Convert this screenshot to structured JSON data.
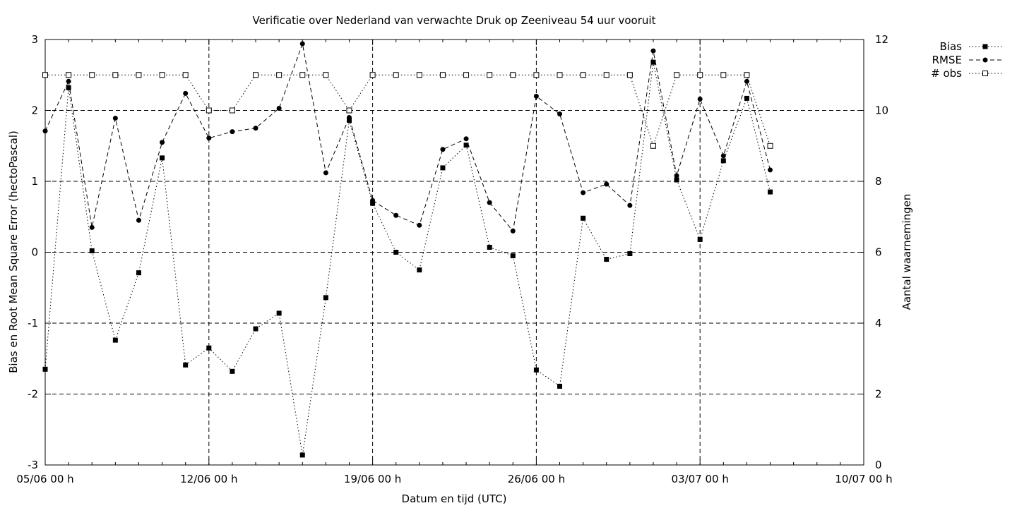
{
  "chart_data": {
    "type": "line",
    "title": "Verificatie over Nederland van verwachte Druk op Zeeniveau 54 uur vooruit",
    "xlabel": "Datum en tijd (UTC)",
    "ylabel": "Bias en Root Mean Square Error (hectoPascal)",
    "y2label": "Aantal waarnemingen",
    "x_ticks": [
      "05/06 00 h",
      "12/06 00 h",
      "19/06 00 h",
      "26/06 00 h",
      "03/07 00 h",
      "10/07 00 h"
    ],
    "x_start": "05/06 00 h",
    "x_end": "10/07 00 h",
    "x_unit": "days",
    "ylim": [
      -3,
      3
    ],
    "y_ticks": [
      "-3",
      "-2",
      "-1",
      "0",
      "1",
      "2",
      "3"
    ],
    "y2lim": [
      0,
      12
    ],
    "y2_ticks": [
      "0",
      "2",
      "4",
      "6",
      "8",
      "10",
      "12"
    ],
    "grid": true,
    "legend_position": "top-right outside",
    "x_days": [
      0,
      1,
      2,
      3,
      4,
      5,
      6,
      7,
      8,
      9,
      10,
      11,
      12,
      13,
      14,
      15,
      16,
      17,
      18,
      19,
      20,
      21,
      22,
      23,
      24,
      25,
      26,
      27,
      28,
      29,
      30,
      31
    ],
    "series": [
      {
        "name": "Bias",
        "axis": "left",
        "style": "dotted",
        "marker": "filled-square",
        "values": [
          -1.65,
          2.32,
          0.02,
          -1.24,
          -0.29,
          1.33,
          -1.59,
          -1.35,
          -1.68,
          -1.08,
          -0.86,
          -2.86,
          -0.64,
          1.86,
          0.69,
          0.0,
          -0.25,
          1.19,
          1.51,
          0.07,
          -0.05,
          -1.66,
          -1.89,
          0.48,
          -0.1,
          -0.02,
          2.68,
          1.02,
          0.18,
          1.29,
          2.17,
          0.85
        ]
      },
      {
        "name": "RMSE",
        "axis": "left",
        "style": "dashed",
        "marker": "filled-circle",
        "values": [
          1.71,
          2.41,
          0.35,
          1.89,
          0.45,
          1.55,
          2.24,
          1.61,
          1.7,
          1.75,
          2.03,
          2.94,
          1.12,
          1.9,
          0.73,
          0.52,
          0.38,
          1.45,
          1.6,
          0.7,
          0.3,
          2.2,
          1.95,
          0.84,
          0.96,
          0.66,
          2.84,
          1.08,
          2.16,
          1.36,
          2.41,
          1.16
        ]
      },
      {
        "name": "# obs",
        "axis": "right",
        "style": "dotted",
        "marker": "open-square",
        "values": [
          11,
          11,
          11,
          11,
          11,
          11,
          11,
          10,
          10,
          11,
          11,
          11,
          11,
          10,
          11,
          11,
          11,
          11,
          11,
          11,
          11,
          11,
          11,
          11,
          11,
          11,
          9,
          11,
          11,
          11,
          11,
          9
        ]
      }
    ]
  }
}
